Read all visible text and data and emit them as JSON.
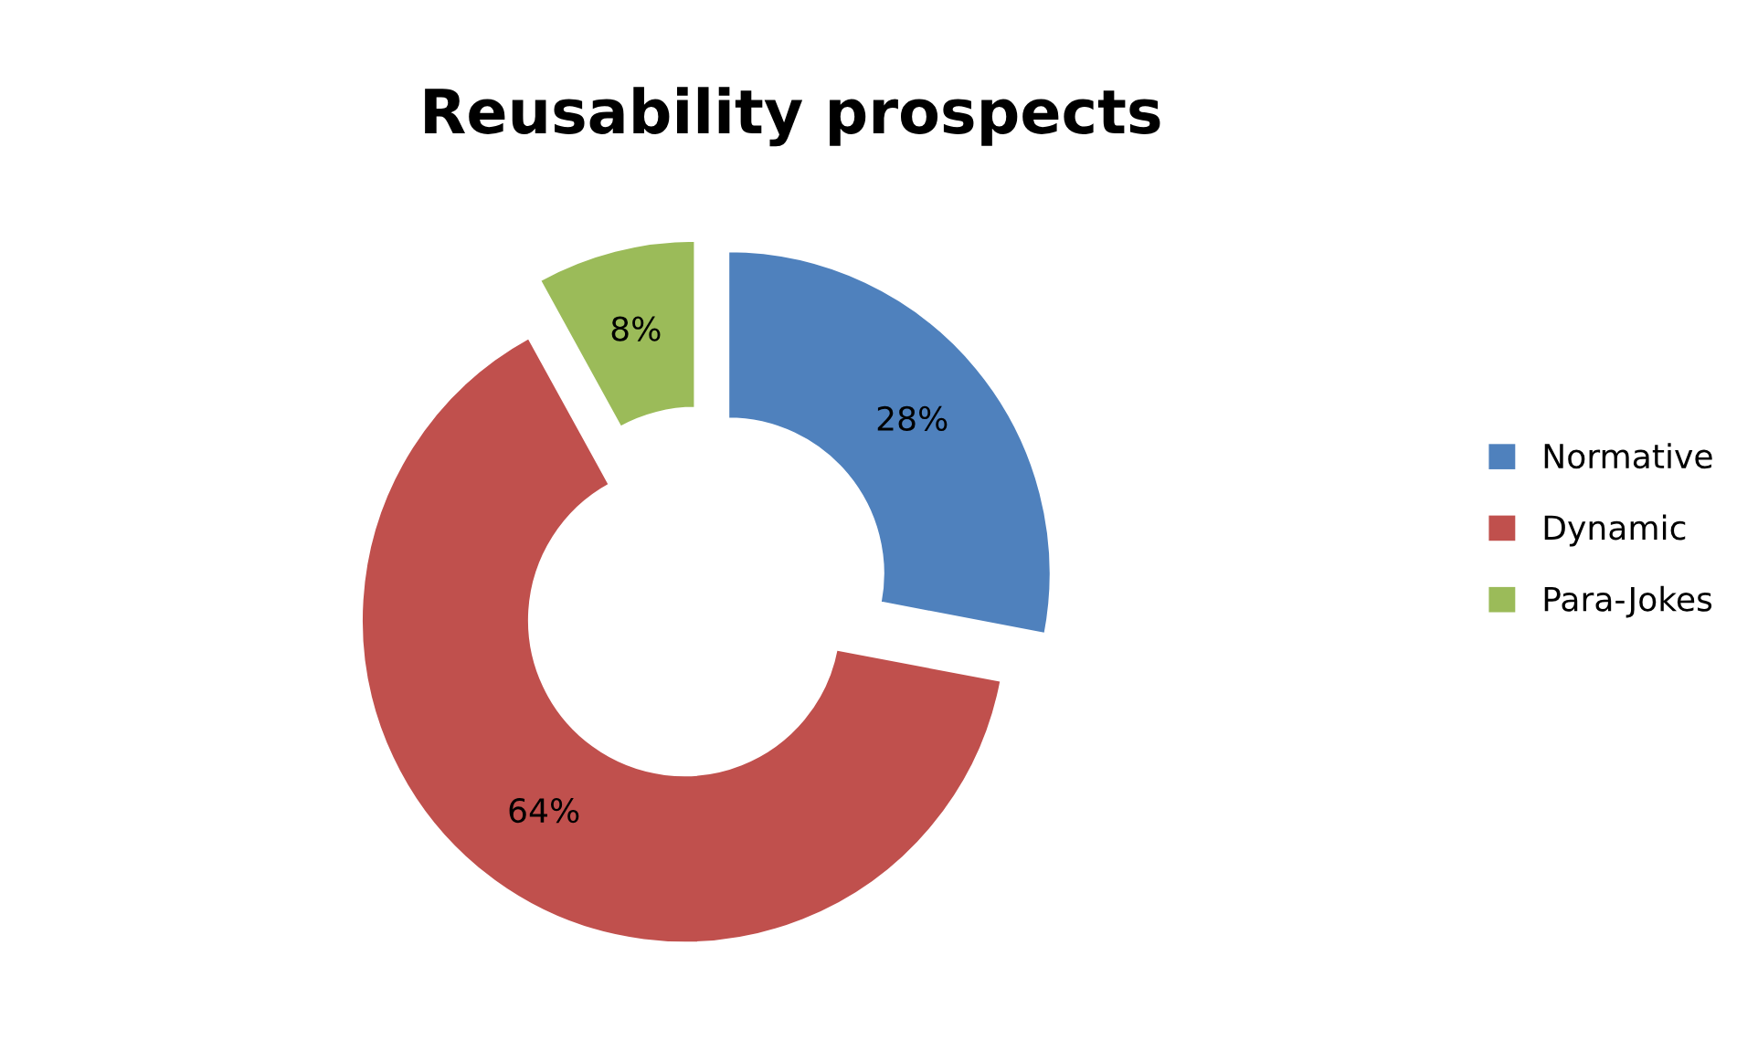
{
  "chart_data": {
    "type": "donut",
    "title": "Reusability prospects",
    "categories": [
      "Normative",
      "Dynamic",
      "Para-Jokes"
    ],
    "values": [
      28,
      64,
      8
    ],
    "colors": [
      "#4f81bd",
      "#c0504d",
      "#9bbb59"
    ],
    "value_labels": [
      "28%",
      "64%",
      "8%"
    ],
    "legend": "right"
  }
}
